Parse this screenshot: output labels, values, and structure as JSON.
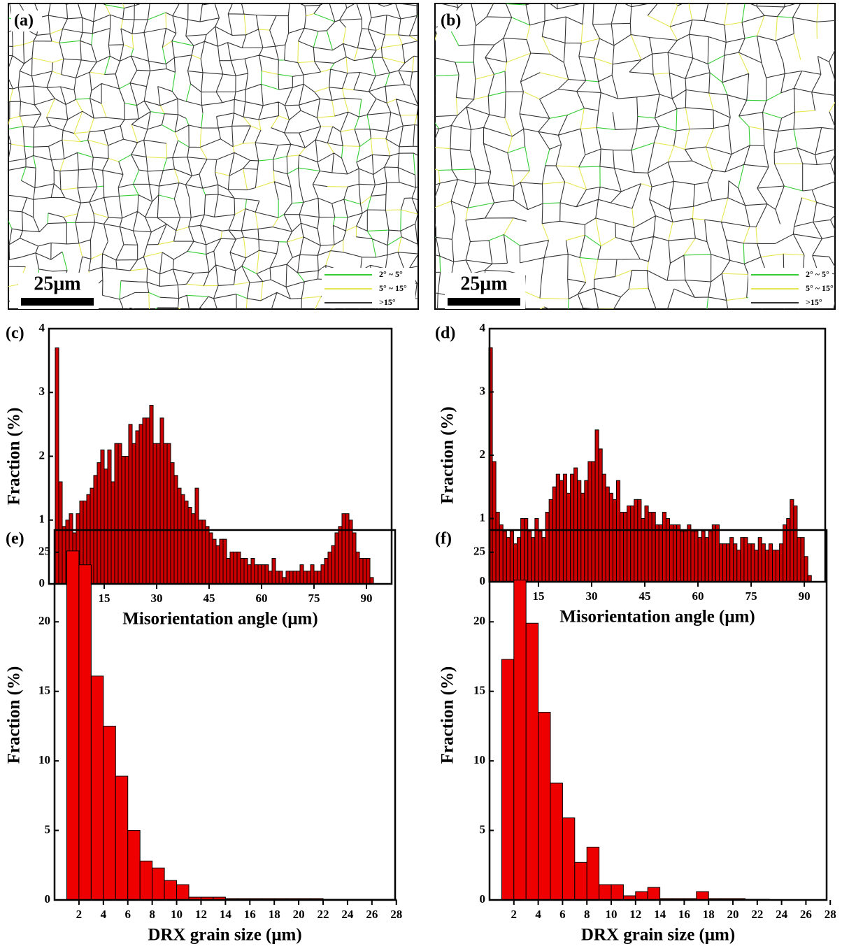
{
  "maps": [
    {
      "label": "(a)",
      "scale_bar": "25μm",
      "legend": [
        {
          "label": "2° ~ 5°",
          "color": "#33cc33"
        },
        {
          "label": "5° ~ 15°",
          "color": "#e6e650"
        },
        {
          "label": ">15°",
          "color": "#333333"
        }
      ]
    },
    {
      "label": "(b)",
      "scale_bar": "25μm",
      "legend": [
        {
          "label": "2° ~ 5°",
          "color": "#33cc33"
        },
        {
          "label": "5° ~ 15°",
          "color": "#e6e650"
        },
        {
          "label": ">15°",
          "color": "#333333"
        }
      ]
    }
  ],
  "chart_data": [
    {
      "type": "histogram",
      "panel_label": "(c)",
      "xlabel": "Misorientation angle (μm)",
      "ylabel": "Fraction (%)",
      "color": "#cc0000",
      "bins": [
        1,
        2,
        3,
        4,
        5,
        6,
        7,
        8,
        9,
        10,
        11,
        12,
        13,
        14,
        15,
        16,
        17,
        18,
        19,
        20,
        21,
        22,
        23,
        24,
        25,
        26,
        27,
        28,
        29,
        30,
        31,
        32,
        33,
        34,
        35,
        36,
        37,
        38,
        39,
        40,
        41,
        42,
        43,
        44,
        45,
        46,
        47,
        48,
        49,
        50,
        51,
        52,
        53,
        54,
        55,
        56,
        57,
        58,
        59,
        60,
        61,
        62,
        63,
        64,
        65,
        66,
        67,
        68,
        69,
        70,
        71,
        72,
        73,
        74,
        75,
        76,
        77,
        78,
        79,
        80,
        81,
        82,
        83,
        84,
        85,
        86,
        87,
        88,
        89,
        90,
        91,
        92,
        93
      ],
      "values": [
        3.7,
        1.6,
        0.9,
        1.0,
        1.1,
        0.8,
        1.1,
        1.3,
        1.3,
        1.4,
        1.5,
        1.7,
        1.9,
        2.1,
        1.8,
        2.1,
        1.6,
        2.2,
        2.2,
        2.0,
        2.0,
        2.5,
        2.2,
        2.4,
        2.5,
        2.6,
        2.6,
        2.8,
        2.2,
        2.2,
        2.6,
        2.2,
        2.2,
        1.9,
        1.7,
        1.5,
        1.4,
        1.3,
        1.2,
        1.1,
        1.5,
        1.0,
        1.0,
        0.9,
        0.8,
        0.7,
        0.6,
        0.7,
        0.7,
        0.4,
        0.5,
        0.5,
        0.5,
        0.4,
        0.4,
        0.3,
        0.4,
        0.3,
        0.3,
        0.3,
        0.3,
        0.2,
        0.4,
        0.2,
        0.2,
        0.1,
        0.2,
        0.2,
        0.2,
        0.2,
        0.3,
        0.2,
        0.2,
        0.3,
        0.2,
        0.2,
        0.3,
        0.4,
        0.5,
        0.6,
        0.8,
        0.9,
        1.1,
        1.1,
        1.0,
        0.8,
        0.5,
        0.4,
        0.4,
        0.4,
        0.1,
        0
      ],
      "xlim": [
        -0.8,
        97.2
      ],
      "xticks": [
        15,
        30,
        45,
        60,
        75,
        90
      ],
      "ylim": [
        0,
        4
      ],
      "yticks": [
        0,
        1,
        2,
        3,
        4
      ]
    },
    {
      "type": "histogram",
      "panel_label": "(d)",
      "xlabel": "Misorientation angle (μm)",
      "ylabel": "Fraction (%)",
      "color": "#cc0000",
      "bins": [
        1,
        2,
        3,
        4,
        5,
        6,
        7,
        8,
        9,
        10,
        11,
        12,
        13,
        14,
        15,
        16,
        17,
        18,
        19,
        20,
        21,
        22,
        23,
        24,
        25,
        26,
        27,
        28,
        29,
        30,
        31,
        32,
        33,
        34,
        35,
        36,
        37,
        38,
        39,
        40,
        41,
        42,
        43,
        44,
        45,
        46,
        47,
        48,
        49,
        50,
        51,
        52,
        53,
        54,
        55,
        56,
        57,
        58,
        59,
        60,
        61,
        62,
        63,
        64,
        65,
        66,
        67,
        68,
        69,
        70,
        71,
        72,
        73,
        74,
        75,
        76,
        77,
        78,
        79,
        80,
        81,
        82,
        83,
        84,
        85,
        86,
        87,
        88,
        89,
        90,
        91,
        92,
        93
      ],
      "values": [
        3.7,
        1.9,
        1.1,
        0.9,
        0.8,
        0.7,
        0.8,
        0.6,
        0.7,
        1.0,
        1.0,
        0.8,
        0.7,
        1.0,
        0.8,
        0.7,
        1.1,
        1.3,
        1.5,
        1.7,
        1.6,
        1.7,
        1.4,
        1.7,
        1.8,
        1.6,
        1.4,
        1.6,
        1.9,
        1.9,
        2.4,
        2.1,
        1.7,
        1.5,
        1.4,
        1.3,
        1.6,
        1.1,
        1.1,
        1.2,
        1.2,
        1.3,
        1.3,
        1.0,
        1.2,
        1.1,
        1.1,
        0.9,
        0.9,
        1.1,
        1.0,
        0.9,
        0.9,
        0.9,
        0.8,
        0.8,
        0.9,
        0.8,
        0.8,
        0.7,
        0.8,
        0.7,
        0.8,
        0.9,
        0.9,
        0.6,
        0.6,
        0.6,
        0.7,
        0.6,
        0.5,
        0.7,
        0.7,
        0.6,
        0.6,
        0.5,
        0.7,
        0.6,
        0.5,
        0.6,
        0.5,
        0.5,
        0.6,
        0.9,
        1.0,
        1.3,
        1.2,
        0.7,
        0.7,
        0.4,
        0.1,
        0
      ],
      "xlim": [
        1.2,
        95.9
      ],
      "xticks": [
        15,
        30,
        45,
        60,
        75,
        90
      ],
      "ylim": [
        0,
        4
      ],
      "yticks": [
        0,
        1,
        2,
        3,
        4
      ]
    },
    {
      "type": "histogram",
      "panel_label": "(e)",
      "xlabel": "DRX grain size (μm)",
      "ylabel": "Fraction (%)",
      "color": "#ee0000",
      "bins": [
        1,
        2,
        3,
        4,
        5,
        6,
        7,
        8,
        9,
        10,
        11,
        12,
        13,
        14,
        15,
        16,
        17,
        18,
        19,
        20,
        21,
        22,
        23,
        24,
        25,
        26,
        27,
        28
      ],
      "values": [
        25.1,
        24.1,
        16.1,
        12.5,
        8.9,
        5.0,
        2.8,
        2.3,
        1.4,
        1.1,
        0.2,
        0.2,
        0.2,
        0.1,
        0.1,
        0.1,
        0.1,
        0.1,
        0.1,
        0.1,
        0.1,
        0.05,
        0.05,
        0.05,
        0.05,
        0.05,
        0.05
      ],
      "xlim": [
        0,
        27.9
      ],
      "xticks": [
        2,
        4,
        6,
        8,
        10,
        12,
        14,
        16,
        18,
        20,
        22,
        24,
        26,
        28
      ],
      "ylim": [
        0,
        26.6
      ],
      "yticks": [
        0,
        5,
        10,
        15,
        20,
        25
      ]
    },
    {
      "type": "histogram",
      "panel_label": "(f)",
      "xlabel": "DRX grain size (μm)",
      "ylabel": "Fraction (%)",
      "color": "#ee0000",
      "bins": [
        1,
        2,
        3,
        4,
        5,
        6,
        7,
        8,
        9,
        10,
        11,
        12,
        13,
        14,
        15,
        16,
        17,
        18,
        19,
        20,
        21,
        22,
        23,
        24,
        25,
        26,
        27,
        28
      ],
      "values": [
        17.3,
        23.0,
        19.9,
        13.5,
        8.4,
        5.9,
        2.7,
        3.8,
        1.1,
        1.1,
        0.3,
        0.6,
        0.9,
        0.1,
        0.1,
        0.1,
        0.6,
        0.1,
        0.1,
        0.1,
        0.05,
        0.05,
        0,
        0,
        0,
        0,
        0
      ],
      "xlim": [
        0,
        27.7
      ],
      "xticks": [
        2,
        4,
        6,
        8,
        10,
        12,
        14,
        16,
        18,
        20,
        22,
        24,
        26,
        28
      ],
      "ylim": [
        0,
        26.6
      ],
      "yticks": [
        0,
        5,
        10,
        15,
        20,
        25
      ]
    }
  ]
}
